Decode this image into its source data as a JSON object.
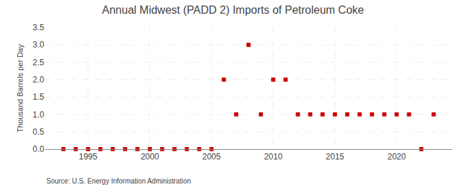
{
  "chart_data": {
    "type": "scatter",
    "title": "Annual Midwest (PADD 2) Imports of Petroleum Coke",
    "ylabel": "Thousand Barrels per Day",
    "annotations": [
      "Source: U.S. Energy Information Administration"
    ],
    "x": [
      1993,
      1994,
      1995,
      1996,
      1997,
      1998,
      1999,
      2000,
      2001,
      2002,
      2003,
      2004,
      2005,
      2006,
      2007,
      2008,
      2009,
      2010,
      2011,
      2012,
      2013,
      2014,
      2015,
      2016,
      2017,
      2018,
      2019,
      2020,
      2021,
      2022,
      2023
    ],
    "values": [
      0,
      0,
      0,
      0,
      0,
      0,
      0,
      0,
      0,
      0,
      0,
      0,
      0,
      2,
      1,
      3,
      1,
      2,
      2,
      1,
      1,
      1,
      1,
      1,
      1,
      1,
      1,
      1,
      1,
      0,
      1
    ],
    "color": "#cc0000",
    "marker": "square",
    "xlim": [
      1991.5,
      2024.5
    ],
    "xticks": [
      1995,
      2000,
      2005,
      2010,
      2015,
      2020
    ],
    "ylim": [
      0,
      3.5
    ],
    "yticks": [
      {
        "value": 0,
        "label": "0.0"
      },
      0.5,
      {
        "value": 1,
        "label": "1.0"
      },
      1.5,
      {
        "value": 2,
        "label": "2.0"
      },
      2.5,
      {
        "value": 3,
        "label": "3.0"
      },
      3.5
    ],
    "grid": true
  }
}
